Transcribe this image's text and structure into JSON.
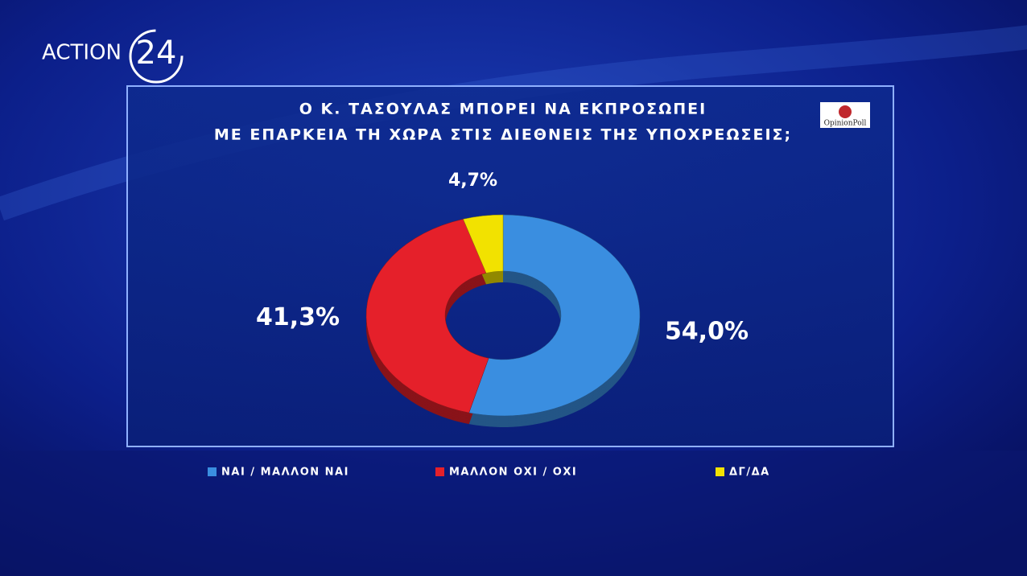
{
  "channel_logo": {
    "text": "ACTION",
    "number": "24"
  },
  "chart_data": {
    "type": "donut",
    "title_lines": [
      "Ο Κ. ΤΑΣΟΥΛΑΣ ΜΠΟΡΕΙ ΝΑ ΕΚΠΡΟΣΩΠΕΙ",
      "ΜΕ ΕΠΑΡΚΕΙΑ ΤΗ ΧΩΡΑ ΣΤΙΣ ΔΙΕΘΝΕΙΣ ΤΗΣ ΥΠΟΧΡΕΩΣΕΙΣ;"
    ],
    "source": "OpinionPoll",
    "categories": [
      "ΝΑΙ / ΜΑΛΛΟΝ ΝΑΙ",
      "ΜΑΛΛΟΝ ΟΧΙ / ΟΧΙ",
      "ΔΓ/ΔΑ"
    ],
    "values": [
      54.0,
      41.3,
      4.7
    ],
    "value_labels": [
      "54,0%",
      "41,3%",
      "4,7%"
    ],
    "colors": [
      "#3a8ee0",
      "#e5202a",
      "#f2e200"
    ]
  }
}
